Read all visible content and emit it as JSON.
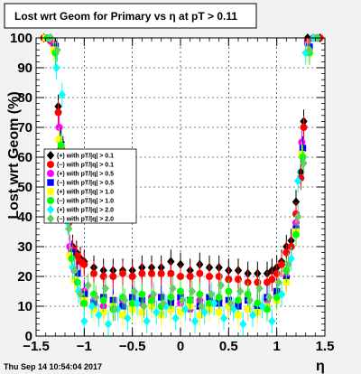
{
  "chart_data": {
    "type": "scatter",
    "title": "Lost wrt Geom for Primary vs   η at pT > 0.11",
    "xlabel": "η",
    "ylabel": "Lost wrt Geom (%)",
    "xlim": [
      -1.5,
      1.5
    ],
    "ylim": [
      0,
      100
    ],
    "x_ticks": [
      "−1.5",
      "−1",
      "−0.5",
      "0",
      "0.5",
      "1",
      "1.5"
    ],
    "y_ticks": [
      "0",
      "10",
      "20",
      "30",
      "40",
      "50",
      "60",
      "70",
      "80",
      "90",
      "100"
    ],
    "grid": true,
    "legend_position": "left-middle",
    "series": [
      {
        "name": "(+) with pT/|q| > 0.1",
        "color": "#000000",
        "marker": "diamond",
        "points": [
          [
            -1.42,
            100
          ],
          [
            -1.35,
            100
          ],
          [
            -1.3,
            98
          ],
          [
            -1.27,
            77
          ],
          [
            -1.24,
            65
          ],
          [
            -1.2,
            52
          ],
          [
            -1.16,
            40
          ],
          [
            -1.12,
            30
          ],
          [
            -1.08,
            28
          ],
          [
            -1.04,
            26
          ],
          [
            -1.0,
            25
          ],
          [
            -0.9,
            23
          ],
          [
            -0.8,
            22
          ],
          [
            -0.7,
            22
          ],
          [
            -0.6,
            22
          ],
          [
            -0.5,
            22
          ],
          [
            -0.4,
            23
          ],
          [
            -0.3,
            23
          ],
          [
            -0.2,
            23
          ],
          [
            -0.1,
            25
          ],
          [
            0.0,
            24
          ],
          [
            0.1,
            22
          ],
          [
            0.2,
            24
          ],
          [
            0.3,
            23
          ],
          [
            0.4,
            23
          ],
          [
            0.5,
            22
          ],
          [
            0.6,
            22
          ],
          [
            0.7,
            21
          ],
          [
            0.8,
            21
          ],
          [
            0.9,
            21
          ],
          [
            0.95,
            22
          ],
          [
            1.0,
            23
          ],
          [
            1.05,
            25
          ],
          [
            1.1,
            30
          ],
          [
            1.15,
            32
          ],
          [
            1.2,
            45
          ],
          [
            1.25,
            55
          ],
          [
            1.28,
            72
          ],
          [
            1.32,
            100
          ],
          [
            1.38,
            100
          ],
          [
            1.45,
            100
          ]
        ]
      },
      {
        "name": "(−) with pT/|q| > 0.1",
        "color": "#ff0000",
        "marker": "circle",
        "points": [
          [
            -1.42,
            100
          ],
          [
            -1.35,
            99
          ],
          [
            -1.3,
            97
          ],
          [
            -1.27,
            75
          ],
          [
            -1.24,
            63
          ],
          [
            -1.2,
            50
          ],
          [
            -1.16,
            38
          ],
          [
            -1.12,
            29
          ],
          [
            -1.08,
            27
          ],
          [
            -1.04,
            25
          ],
          [
            -1.0,
            24
          ],
          [
            -0.9,
            21
          ],
          [
            -0.8,
            20
          ],
          [
            -0.7,
            20
          ],
          [
            -0.6,
            21
          ],
          [
            -0.5,
            20
          ],
          [
            -0.4,
            21
          ],
          [
            -0.3,
            21
          ],
          [
            -0.2,
            21
          ],
          [
            -0.1,
            21
          ],
          [
            0.0,
            20
          ],
          [
            0.1,
            20
          ],
          [
            0.2,
            21
          ],
          [
            0.3,
            20
          ],
          [
            0.4,
            20
          ],
          [
            0.5,
            19
          ],
          [
            0.6,
            19
          ],
          [
            0.7,
            18
          ],
          [
            0.8,
            18
          ],
          [
            0.9,
            18
          ],
          [
            0.95,
            19
          ],
          [
            1.0,
            21
          ],
          [
            1.05,
            24
          ],
          [
            1.1,
            28
          ],
          [
            1.15,
            30
          ],
          [
            1.2,
            41
          ],
          [
            1.25,
            53
          ],
          [
            1.28,
            70
          ],
          [
            1.32,
            99
          ],
          [
            1.38,
            100
          ],
          [
            1.45,
            100
          ]
        ]
      },
      {
        "name": "(+) with pT/|q| > 0.5",
        "color": "#ff00ff",
        "marker": "circle",
        "points": [
          [
            -1.4,
            100
          ],
          [
            -1.32,
            98
          ],
          [
            -1.26,
            70
          ],
          [
            -1.2,
            48
          ],
          [
            -1.15,
            30
          ],
          [
            -1.1,
            22
          ],
          [
            -1.0,
            15
          ],
          [
            -0.9,
            12
          ],
          [
            -0.8,
            10
          ],
          [
            -0.7,
            11
          ],
          [
            -0.6,
            12
          ],
          [
            -0.5,
            10
          ],
          [
            -0.4,
            11
          ],
          [
            -0.3,
            13
          ],
          [
            -0.2,
            10
          ],
          [
            -0.1,
            12
          ],
          [
            0.0,
            11
          ],
          [
            0.1,
            9
          ],
          [
            0.2,
            12
          ],
          [
            0.3,
            10
          ],
          [
            0.4,
            12
          ],
          [
            0.5,
            10
          ],
          [
            0.6,
            11
          ],
          [
            0.7,
            9
          ],
          [
            0.8,
            11
          ],
          [
            0.9,
            12
          ],
          [
            1.0,
            14
          ],
          [
            1.1,
            20
          ],
          [
            1.2,
            38
          ],
          [
            1.26,
            65
          ],
          [
            1.32,
            98
          ],
          [
            1.4,
            100
          ]
        ]
      },
      {
        "name": "(−) with pT/|q| > 0.5",
        "color": "#0000ff",
        "marker": "square",
        "points": [
          [
            -1.38,
            100
          ],
          [
            -1.3,
            97
          ],
          [
            -1.25,
            66
          ],
          [
            -1.18,
            45
          ],
          [
            -1.13,
            28
          ],
          [
            -1.07,
            21
          ],
          [
            -1.0,
            14
          ],
          [
            -0.9,
            11
          ],
          [
            -0.8,
            13
          ],
          [
            -0.7,
            12
          ],
          [
            -0.6,
            10
          ],
          [
            -0.5,
            13
          ],
          [
            -0.4,
            12
          ],
          [
            -0.3,
            11
          ],
          [
            -0.2,
            13
          ],
          [
            -0.1,
            11
          ],
          [
            0.0,
            13
          ],
          [
            0.1,
            12
          ],
          [
            0.2,
            10
          ],
          [
            0.3,
            13
          ],
          [
            0.4,
            11
          ],
          [
            0.5,
            12
          ],
          [
            0.6,
            10
          ],
          [
            0.7,
            12
          ],
          [
            0.8,
            10
          ],
          [
            0.9,
            13
          ],
          [
            1.0,
            15
          ],
          [
            1.1,
            19
          ],
          [
            1.2,
            36
          ],
          [
            1.27,
            63
          ],
          [
            1.34,
            97
          ],
          [
            1.42,
            100
          ]
        ]
      },
      {
        "name": "(+) with pT/|q| > 1.0",
        "color": "#ffff00",
        "marker": "square",
        "points": [
          [
            -1.4,
            100
          ],
          [
            -1.32,
            96
          ],
          [
            -1.26,
            66
          ],
          [
            -1.2,
            44
          ],
          [
            -1.15,
            27
          ],
          [
            -1.1,
            19
          ],
          [
            -1.0,
            12
          ],
          [
            -0.9,
            9
          ],
          [
            -0.8,
            8
          ],
          [
            -0.7,
            10
          ],
          [
            -0.6,
            7
          ],
          [
            -0.5,
            9
          ],
          [
            -0.4,
            8
          ],
          [
            -0.3,
            10
          ],
          [
            -0.2,
            7
          ],
          [
            -0.1,
            9
          ],
          [
            0.0,
            8
          ],
          [
            0.1,
            10
          ],
          [
            0.2,
            7
          ],
          [
            0.3,
            9
          ],
          [
            0.4,
            8
          ],
          [
            0.5,
            10
          ],
          [
            0.6,
            7
          ],
          [
            0.7,
            9
          ],
          [
            0.8,
            8
          ],
          [
            0.9,
            10
          ],
          [
            1.0,
            12
          ],
          [
            1.1,
            18
          ],
          [
            1.2,
            35
          ],
          [
            1.26,
            61
          ],
          [
            1.32,
            96
          ],
          [
            1.4,
            100
          ]
        ]
      },
      {
        "name": "(−) with pT/|q| > 1.0",
        "color": "#00ff00",
        "marker": "circle",
        "points": [
          [
            -1.38,
            100
          ],
          [
            -1.3,
            95
          ],
          [
            -1.24,
            64
          ],
          [
            -1.18,
            42
          ],
          [
            -1.13,
            26
          ],
          [
            -1.07,
            18
          ],
          [
            -1.0,
            11
          ],
          [
            -0.9,
            14
          ],
          [
            -0.8,
            12
          ],
          [
            -0.7,
            9
          ],
          [
            -0.6,
            13
          ],
          [
            -0.5,
            11
          ],
          [
            -0.4,
            14
          ],
          [
            -0.3,
            12
          ],
          [
            -0.2,
            10
          ],
          [
            -0.1,
            13
          ],
          [
            0.0,
            15
          ],
          [
            0.1,
            12
          ],
          [
            0.2,
            14
          ],
          [
            0.3,
            11
          ],
          [
            0.4,
            13
          ],
          [
            0.5,
            15
          ],
          [
            0.6,
            12
          ],
          [
            0.7,
            14
          ],
          [
            0.8,
            11
          ],
          [
            0.9,
            9
          ],
          [
            1.0,
            13
          ],
          [
            1.1,
            22
          ],
          [
            1.2,
            34
          ],
          [
            1.27,
            60
          ],
          [
            1.34,
            95
          ],
          [
            1.42,
            100
          ]
        ]
      },
      {
        "name": "(+) with pT/|q| > 2.0",
        "color": "#00ffff",
        "marker": "diamond",
        "points": [
          [
            -1.36,
            100
          ],
          [
            -1.29,
            90
          ],
          [
            -1.23,
            81
          ],
          [
            -1.17,
            38
          ],
          [
            -1.12,
            23
          ],
          [
            -1.06,
            15
          ],
          [
            -1.0,
            5
          ],
          [
            -0.92,
            10
          ],
          [
            -0.85,
            7
          ],
          [
            -0.75,
            4
          ],
          [
            -0.65,
            9
          ],
          [
            -0.55,
            6
          ],
          [
            -0.45,
            11
          ],
          [
            -0.35,
            5
          ],
          [
            -0.25,
            8
          ],
          [
            -0.15,
            10
          ],
          [
            -0.05,
            6
          ],
          [
            0.05,
            9
          ],
          [
            0.15,
            5
          ],
          [
            0.25,
            8
          ],
          [
            0.35,
            11
          ],
          [
            0.45,
            6
          ],
          [
            0.55,
            9
          ],
          [
            0.65,
            4
          ],
          [
            0.75,
            7
          ],
          [
            0.85,
            10
          ],
          [
            0.95,
            5
          ],
          [
            1.05,
            14
          ],
          [
            1.15,
            26
          ],
          [
            1.22,
            52
          ],
          [
            1.3,
            95
          ],
          [
            1.38,
            100
          ]
        ]
      },
      {
        "name": "(−) with pT/|q| > 2.0",
        "color": "#66cc66",
        "marker": "diamond",
        "points": [
          [
            -1.35,
            100
          ],
          [
            -1.28,
            96
          ],
          [
            -1.22,
            60
          ],
          [
            -1.16,
            36
          ],
          [
            -1.1,
            22
          ],
          [
            -1.04,
            14
          ],
          [
            -0.96,
            17
          ],
          [
            -0.88,
            13
          ],
          [
            -0.78,
            16
          ],
          [
            -0.68,
            9
          ],
          [
            -0.58,
            12
          ],
          [
            -0.48,
            15
          ],
          [
            -0.38,
            10
          ],
          [
            -0.28,
            14
          ],
          [
            -0.18,
            11
          ],
          [
            -0.08,
            16
          ],
          [
            0.02,
            12
          ],
          [
            0.12,
            15
          ],
          [
            0.22,
            10
          ],
          [
            0.32,
            14
          ],
          [
            0.42,
            17
          ],
          [
            0.52,
            11
          ],
          [
            0.62,
            15
          ],
          [
            0.72,
            12
          ],
          [
            0.82,
            16
          ],
          [
            0.92,
            13
          ],
          [
            1.02,
            18
          ],
          [
            1.12,
            24
          ],
          [
            1.22,
            40
          ],
          [
            1.28,
            58
          ],
          [
            1.34,
            96
          ],
          [
            1.42,
            100
          ]
        ]
      }
    ]
  },
  "footer": {
    "timestamp": "Thu Sep 14 10:54:04 2017",
    "axis_symbol": "η"
  }
}
